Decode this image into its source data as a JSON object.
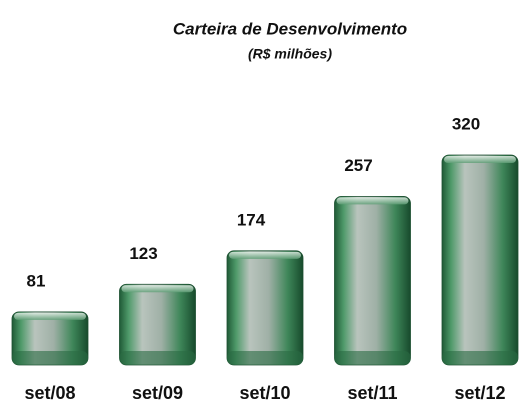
{
  "chart_data": {
    "type": "bar",
    "title": "Carteira de Desenvolvimento",
    "subtitle": "(R$ milhões)",
    "categories": [
      "set/08",
      "set/09",
      "set/10",
      "set/11",
      "set/12"
    ],
    "values": [
      81,
      123,
      174,
      257,
      320
    ],
    "color": "#2f7a4c"
  }
}
